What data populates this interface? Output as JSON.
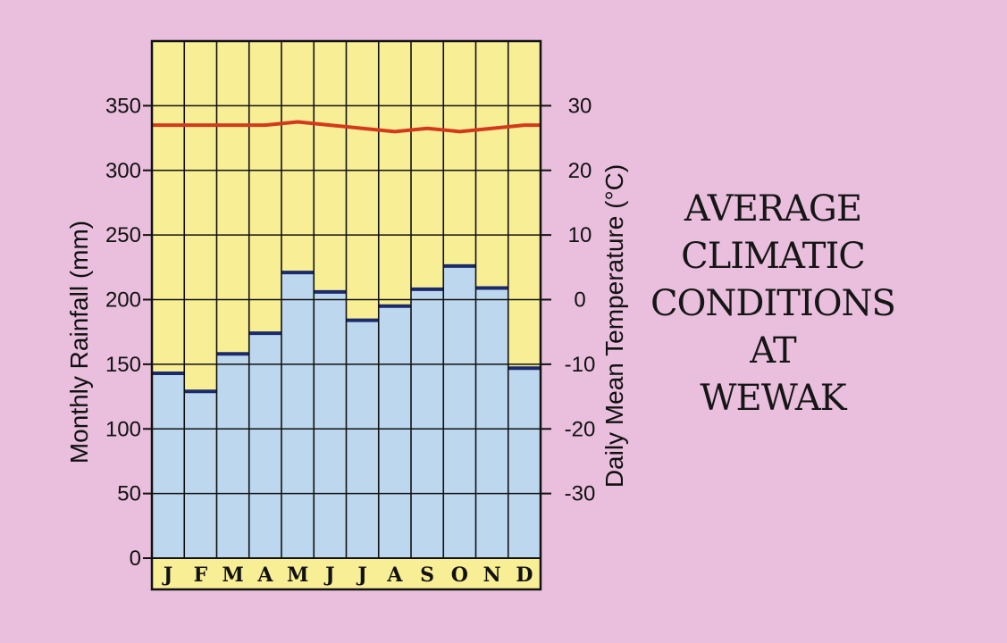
{
  "chart_data": {
    "type": "bar",
    "categories": [
      "J",
      "F",
      "M",
      "A",
      "M",
      "J",
      "J",
      "A",
      "S",
      "O",
      "N",
      "D"
    ],
    "series": [
      {
        "values": [
          143,
          129,
          158,
          174,
          221,
          206,
          184,
          195,
          208,
          226,
          209,
          147
        ],
        "color": "#bcd7ee",
        "edge_color": "#1b2a6b"
      },
      {
        "values": [
          27,
          27,
          27,
          27,
          27.5,
          27,
          26.5,
          26,
          26.5,
          26,
          26.5,
          27
        ],
        "type": "line",
        "color": "#d33a1c"
      }
    ],
    "ylabel": "Monthly Rainfall (mm)",
    "ylabel_right": "Daily Mean Temperature (°C)",
    "ylim": [
      0,
      400
    ],
    "yticks": [
      0,
      50,
      100,
      150,
      200,
      250,
      300,
      350
    ],
    "ylim_right": [
      -40,
      40
    ],
    "yticks_right": [
      -30,
      -20,
      -10,
      0,
      10,
      20,
      30
    ],
    "grid": true,
    "background_color": "#f8ee96",
    "page_color": "#e9bfdd"
  },
  "title_lines": [
    "AVERAGE",
    "CLIMATIC",
    "CONDITIONS",
    "AT",
    "WEWAK"
  ]
}
